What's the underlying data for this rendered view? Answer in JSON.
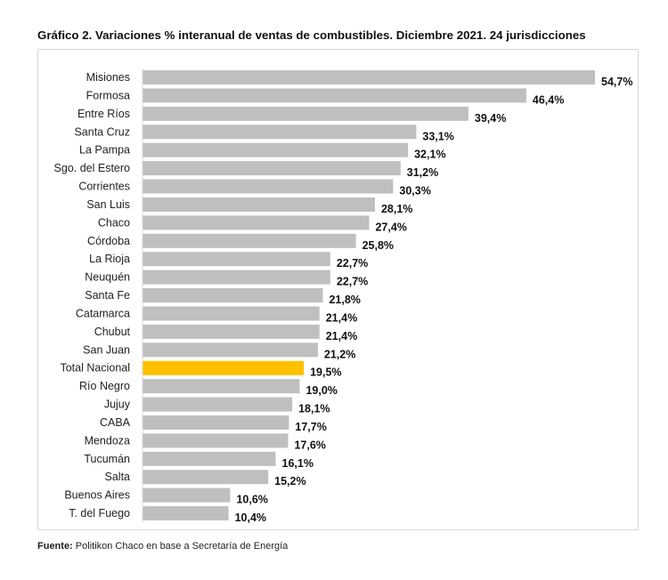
{
  "chart_data": {
    "type": "bar",
    "orientation": "horizontal",
    "title": "Gráfico 2. Variaciones % interanual de ventas de combustibles. Diciembre 2021. 24 jurisdicciones",
    "categories": [
      "Misiones",
      "Formosa",
      "Entre Ríos",
      "Santa Cruz",
      "La Pampa",
      "Sgo. del Estero",
      "Corrientes",
      "San Luis",
      "Chaco",
      "Córdoba",
      "La Rioja",
      "Neuquén",
      "Santa Fe",
      "Catamarca",
      "Chubut",
      "San Juan",
      "Total Nacional",
      "Río Negro",
      "Jujuy",
      "CABA",
      "Mendoza",
      "Tucumán",
      "Salta",
      "Buenos Aires",
      "T. del Fuego"
    ],
    "values": [
      54.7,
      46.4,
      39.4,
      33.1,
      32.1,
      31.2,
      30.3,
      28.1,
      27.4,
      25.8,
      22.7,
      22.7,
      21.8,
      21.4,
      21.4,
      21.2,
      19.5,
      19.0,
      18.1,
      17.7,
      17.6,
      16.1,
      15.2,
      10.6,
      10.4
    ],
    "data_labels": [
      "54,7%",
      "46,4%",
      "39,4%",
      "33,1%",
      "32,1%",
      "31,2%",
      "30,3%",
      "28,1%",
      "27,4%",
      "25,8%",
      "22,7%",
      "22,7%",
      "21,8%",
      "21,4%",
      "21,4%",
      "21,2%",
      "19,5%",
      "19,0%",
      "18,1%",
      "17,7%",
      "17,6%",
      "16,1%",
      "15,2%",
      "10,6%",
      "10,4%"
    ],
    "highlight_category": "Total Nacional",
    "colors": {
      "default": "#bfbfbf",
      "highlight": "#ffc000"
    },
    "xlim": [
      0,
      55
    ],
    "grid": false,
    "legend": "none",
    "xlabel": "",
    "ylabel": ""
  },
  "source": {
    "label": "Fuente:",
    "text": " Politikon Chaco en base a Secretaría de Energía"
  }
}
